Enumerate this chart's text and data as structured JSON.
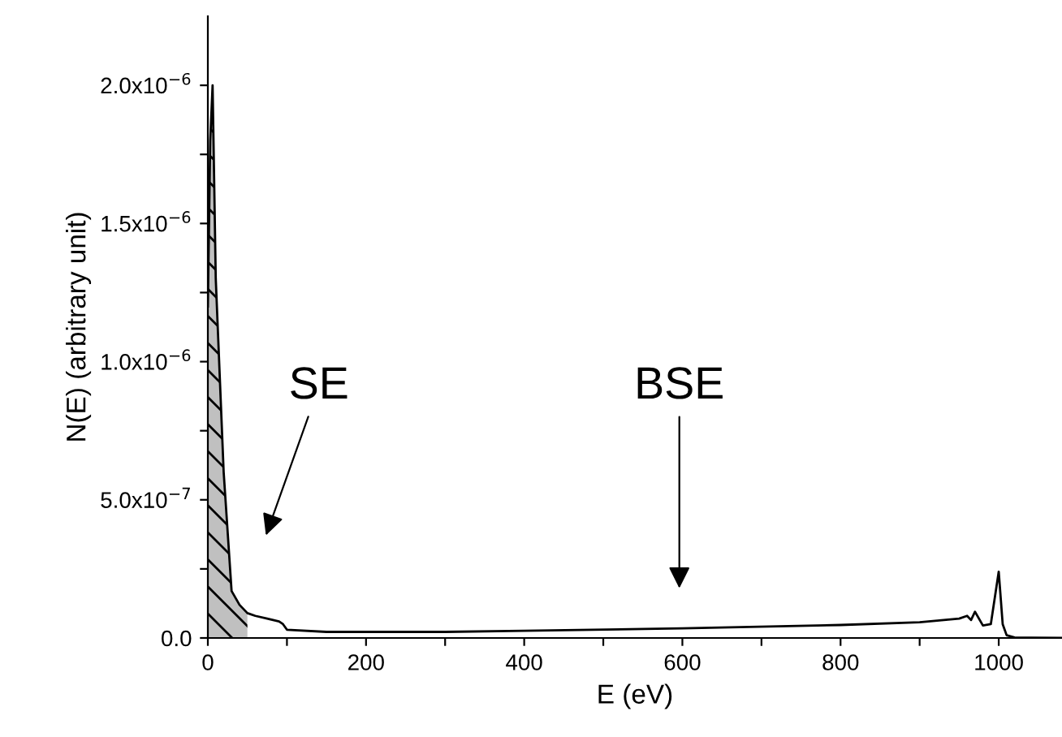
{
  "chart_data": {
    "type": "line",
    "xlabel": "E (eV)",
    "ylabel": "N(E) (arbitrary unit)",
    "xlim": [
      0,
      1080
    ],
    "ylim": [
      0,
      2.25e-06
    ],
    "xticks": [
      0,
      {
        "value": 100,
        "label": null
      },
      200,
      {
        "value": 300,
        "label": null
      },
      400,
      {
        "value": 500,
        "label": null
      },
      600,
      {
        "value": 700,
        "label": null
      },
      800,
      {
        "value": 900,
        "label": null
      },
      1000
    ],
    "yticks": [
      {
        "value": 0,
        "label": "0.0"
      },
      {
        "value": 2.5e-07,
        "label": null
      },
      {
        "value": 5e-07,
        "label": "5.0x10$^{−7}$"
      },
      {
        "value": 7.5e-07,
        "label": null
      },
      {
        "value": 1e-06,
        "label": "1.0x10$^{−6}$"
      },
      {
        "value": 1.25e-06,
        "label": null
      },
      {
        "value": 1.5e-06,
        "label": "1.5x10$^{−6}$"
      },
      {
        "value": 1.75e-06,
        "label": null
      },
      {
        "value": 2e-06,
        "label": "2.0x10$^{−6}$"
      }
    ],
    "grid": false,
    "legend": false,
    "marker": "none",
    "line_style": "solid",
    "series": [
      {
        "type": "area",
        "color": "#c0c0c0",
        "x": [
          0,
          3,
          6,
          10,
          20,
          30,
          40,
          50
        ],
        "values": [
          1.2e-06,
          1.8e-06,
          2e-06,
          1.3e-06,
          6e-07,
          1.7e-07,
          1.2e-07,
          9e-08
        ]
      },
      {
        "color": "#000000",
        "x": [
          0,
          3,
          6,
          10,
          20,
          30,
          40,
          50,
          60,
          75,
          90,
          95,
          100,
          150,
          300,
          400,
          600,
          800,
          900,
          950,
          960,
          965,
          970,
          980,
          990,
          1000,
          1005,
          1010,
          1020,
          1080
        ],
        "values": [
          1.2e-06,
          1.8e-06,
          2e-06,
          1.3e-06,
          6e-07,
          1.7e-07,
          1.2e-07,
          9e-08,
          8e-08,
          7e-08,
          6e-08,
          5e-08,
          3e-08,
          2.2e-08,
          2.2e-08,
          2.6e-08,
          3.5e-08,
          4.7e-08,
          5.7e-08,
          7e-08,
          8e-08,
          6.5e-08,
          9.5e-08,
          4.5e-08,
          5e-08,
          2.4e-07,
          5e-08,
          1e-08,
          2e-09,
          0
        ]
      }
    ],
    "annotations": [
      "SE",
      "BSE"
    ]
  }
}
